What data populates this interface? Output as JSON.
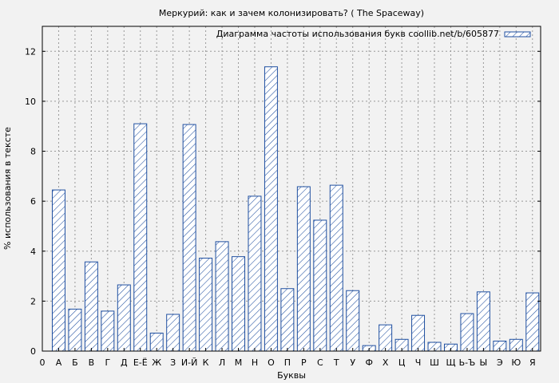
{
  "chart_data": {
    "type": "bar",
    "title": "Меркурий: как и зачем колонизировать? ( The Spaceway)",
    "xlabel": "Буквы",
    "ylabel": "% использования в тексте",
    "ylim": [
      0,
      13
    ],
    "yticks": [
      0,
      2,
      4,
      6,
      8,
      10,
      12
    ],
    "x_origin_label": "0",
    "categories": [
      "А",
      "Б",
      "В",
      "Г",
      "Д",
      "Е-Ё",
      "Ж",
      "З",
      "И-Й",
      "К",
      "Л",
      "М",
      "Н",
      "О",
      "П",
      "Р",
      "С",
      "Т",
      "У",
      "Ф",
      "Х",
      "Ц",
      "Ч",
      "Ш",
      "Щ",
      "Ь-Ъ",
      "Ы",
      "Э",
      "Ю",
      "Я"
    ],
    "series": [
      {
        "name": "Диаграмма частоты использования букв coollib.net/b/605877",
        "values": [
          6.45,
          1.68,
          3.57,
          1.6,
          2.65,
          9.1,
          0.72,
          1.47,
          9.07,
          3.72,
          4.38,
          3.78,
          6.2,
          11.38,
          2.5,
          6.58,
          5.24,
          6.64,
          2.42,
          0.22,
          1.05,
          0.47,
          1.43,
          0.35,
          0.28,
          1.5,
          2.37,
          0.4,
          0.47,
          2.33
        ]
      }
    ],
    "grid": true,
    "legend_position": "top-right",
    "colors": {
      "bar_stroke": "#1f4fa0",
      "hatch": "#1f4fa0",
      "bar_fill": "#ffffff",
      "plot_bg": "#f2f2f2",
      "grid": "#999999"
    }
  }
}
